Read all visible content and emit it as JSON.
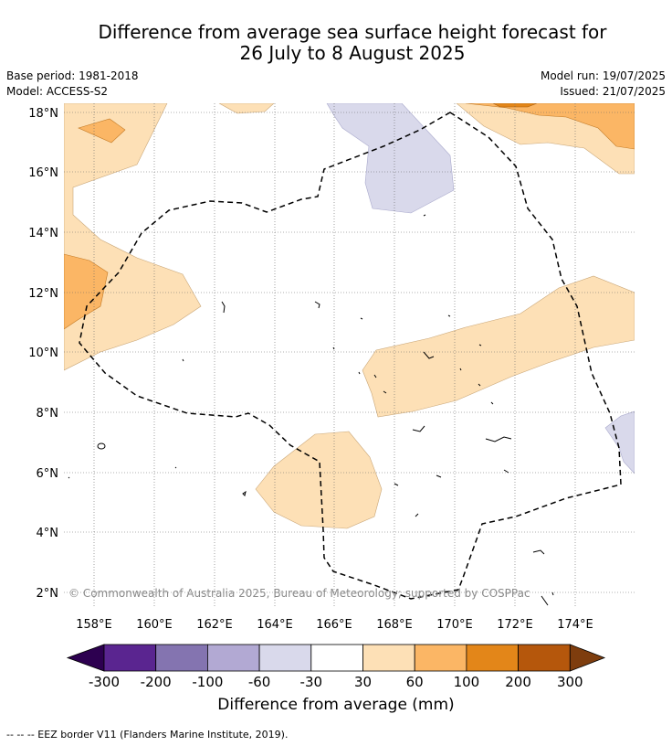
{
  "header": {
    "title_line1": "Difference from average sea surface height forecast for",
    "title_line2": "26 July to 8 August 2025",
    "base_period": "Base period: 1981-2018",
    "model": "Model: ACCESS-S2",
    "model_run": "Model run: 19/07/2025",
    "issued": "Issued: 21/07/2025"
  },
  "map": {
    "lat_labels": [
      "18°N",
      "16°N",
      "14°N",
      "12°N",
      "10°N",
      "8°N",
      "6°N",
      "4°N",
      "2°N"
    ],
    "lon_labels": [
      "158°E",
      "160°E",
      "162°E",
      "164°E",
      "166°E",
      "168°E",
      "170°E",
      "172°E",
      "174°E"
    ],
    "copyright": "© Commonwealth of Australia 2025, Bureau of Meteorology; supported by COSPPac"
  },
  "colorbar": {
    "ticks": [
      "-300",
      "-200",
      "-100",
      "-60",
      "-30",
      "30",
      "60",
      "100",
      "200",
      "300"
    ],
    "colors": [
      "#5a2590",
      "#8474b0",
      "#b2a9d3",
      "#d9d9eb",
      "#ffffff",
      "#fde0b6",
      "#fbb665",
      "#e38619",
      "#b5570c"
    ],
    "under_color": "#2d0050",
    "over_color": "#7e3d0e",
    "label": "Difference from average (mm)"
  },
  "footnote": "-- -- -- EEZ border V11 (Flanders Marine Institute, 2019)."
}
